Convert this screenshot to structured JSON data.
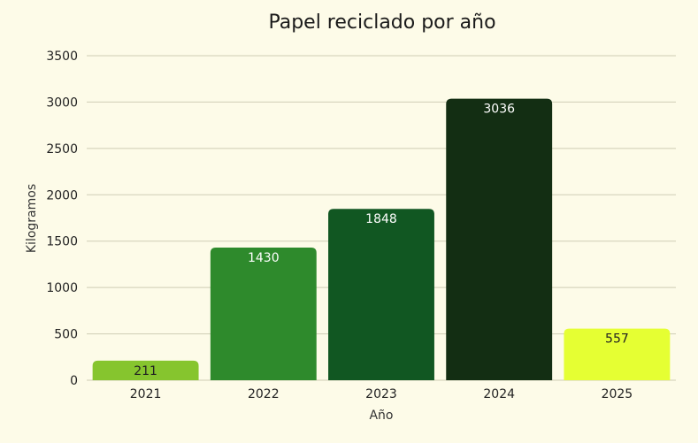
{
  "chart_data": {
    "type": "bar",
    "title": "Papel reciclado por año",
    "xlabel": "Año",
    "ylabel": "Kilogramos",
    "categories": [
      "2021",
      "2022",
      "2023",
      "2024",
      "2025"
    ],
    "values": [
      211,
      1430,
      1848,
      3036,
      557
    ],
    "bar_colors": [
      "#86c52e",
      "#2e8a2c",
      "#115722",
      "#132e13",
      "#e5ff33"
    ],
    "label_colors": [
      "#222222",
      "#ffffff",
      "#ffffff",
      "#ffffff",
      "#222222"
    ],
    "ylim": [
      0,
      3500
    ],
    "yticks": [
      0,
      500,
      1000,
      1500,
      2000,
      2500,
      3000,
      3500
    ],
    "grid": true,
    "legend": "none"
  }
}
